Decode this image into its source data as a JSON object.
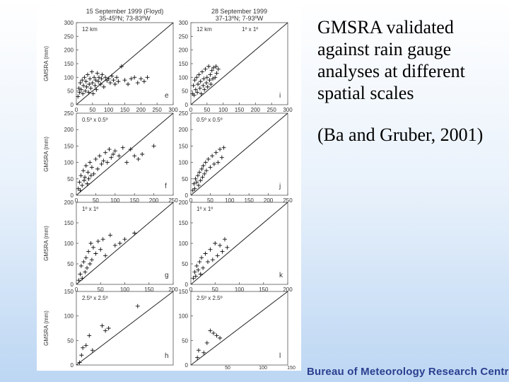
{
  "slide": {
    "title_lines": [
      "GMSRA validated against rain gauge analyses at different spatial scales"
    ],
    "citation": "(Ba and Gruber, 2001)",
    "footer_text": "Bureau of Meteorology Research Centre"
  },
  "chart_data": {
    "type": "scatter",
    "columns": [
      {
        "title": "15 September 1999 (Floyd)",
        "region": "35-45ºN; 73-83ºW"
      },
      {
        "title": "28 September 1999",
        "region": "37-13ºN; 7-93ºW"
      }
    ],
    "ylabel": "GMSRA (mm)",
    "footer_ticks": [
      "50",
      "100",
      "150"
    ],
    "rows": [
      {
        "ylim": [
          0,
          300
        ],
        "yticks": [
          "0",
          "50",
          "100",
          "150",
          "200",
          "250",
          "300"
        ],
        "xlim": [
          0,
          300
        ],
        "xticks": [
          "0",
          "50",
          "100",
          "150",
          "200",
          "250",
          "300"
        ],
        "panels": [
          {
            "id": "e",
            "label": "e",
            "scale": "12 km",
            "scale2": "",
            "points": [
              [
                5,
                30
              ],
              [
                8,
                60
              ],
              [
                10,
                45
              ],
              [
                12,
                80
              ],
              [
                15,
                55
              ],
              [
                18,
                90
              ],
              [
                20,
                40
              ],
              [
                22,
                70
              ],
              [
                25,
                100
              ],
              [
                28,
                50
              ],
              [
                30,
                85
              ],
              [
                32,
                65
              ],
              [
                35,
                110
              ],
              [
                38,
                45
              ],
              [
                40,
                75
              ],
              [
                42,
                95
              ],
              [
                45,
                60
              ],
              [
                48,
                120
              ],
              [
                50,
                80
              ],
              [
                52,
                40
              ],
              [
                55,
                100
              ],
              [
                58,
                70
              ],
              [
                60,
                90
              ],
              [
                62,
                55
              ],
              [
                65,
                115
              ],
              [
                68,
                85
              ],
              [
                70,
                100
              ],
              [
                75,
                75
              ],
              [
                78,
                95
              ],
              [
                80,
                110
              ],
              [
                85,
                65
              ],
              [
                90,
                100
              ],
              [
                95,
                88
              ],
              [
                100,
                95
              ],
              [
                105,
                80
              ],
              [
                110,
                105
              ],
              [
                115,
                90
              ],
              [
                120,
                75
              ],
              [
                125,
                100
              ],
              [
                130,
                85
              ],
              [
                140,
                140
              ],
              [
                150,
                90
              ],
              [
                160,
                75
              ],
              [
                170,
                95
              ],
              [
                180,
                100
              ],
              [
                190,
                80
              ],
              [
                200,
                95
              ],
              [
                210,
                85
              ],
              [
                220,
                100
              ]
            ]
          },
          {
            "id": "i",
            "label": "i",
            "scale": "12 km",
            "scale2": "1º x 1º",
            "points": [
              [
                5,
                40
              ],
              [
                8,
                70
              ],
              [
                10,
                35
              ],
              [
                12,
                90
              ],
              [
                15,
                55
              ],
              [
                18,
                100
              ],
              [
                20,
                45
              ],
              [
                22,
                75
              ],
              [
                25,
                110
              ],
              [
                28,
                60
              ],
              [
                30,
                85
              ],
              [
                32,
                40
              ],
              [
                35,
                120
              ],
              [
                38,
                70
              ],
              [
                40,
                95
              ],
              [
                42,
                55
              ],
              [
                45,
                130
              ],
              [
                48,
                80
              ],
              [
                50,
                100
              ],
              [
                52,
                65
              ],
              [
                55,
                140
              ],
              [
                58,
                90
              ],
              [
                60,
                110
              ],
              [
                62,
                75
              ],
              [
                65,
                125
              ],
              [
                68,
                95
              ],
              [
                70,
                135
              ],
              [
                75,
                100
              ],
              [
                78,
                140
              ],
              [
                80,
                115
              ],
              [
                85,
                130
              ]
            ]
          }
        ]
      },
      {
        "ylim": [
          0,
          250
        ],
        "yticks": [
          "0",
          "50",
          "100",
          "150",
          "200",
          "250"
        ],
        "xlim": [
          0,
          250
        ],
        "xticks": [
          "0",
          "50",
          "100",
          "150",
          "200",
          "250"
        ],
        "panels": [
          {
            "id": "f",
            "label": "f",
            "scale": "0.5º x 0.5º",
            "scale2": "",
            "points": [
              [
                5,
                20
              ],
              [
                8,
                40
              ],
              [
                10,
                15
              ],
              [
                12,
                60
              ],
              [
                15,
                30
              ],
              [
                18,
                75
              ],
              [
                20,
                45
              ],
              [
                22,
                55
              ],
              [
                25,
                90
              ],
              [
                28,
                35
              ],
              [
                30,
                70
              ],
              [
                32,
                50
              ],
              [
                35,
                100
              ],
              [
                38,
                60
              ],
              [
                40,
                85
              ],
              [
                45,
                65
              ],
              [
                50,
                110
              ],
              [
                55,
                80
              ],
              [
                60,
                120
              ],
              [
                65,
                95
              ],
              [
                70,
                105
              ],
              [
                75,
                130
              ],
              [
                80,
                100
              ],
              [
                85,
                140
              ],
              [
                90,
                115
              ],
              [
                95,
                125
              ],
              [
                100,
                135
              ],
              [
                110,
                120
              ],
              [
                120,
                145
              ],
              [
                130,
                100
              ],
              [
                140,
                140
              ],
              [
                150,
                120
              ],
              [
                160,
                110
              ],
              [
                170,
                125
              ],
              [
                200,
                150
              ]
            ]
          },
          {
            "id": "j",
            "label": "j",
            "scale": "0.5º x 0.5º",
            "scale2": "",
            "points": [
              [
                5,
                15
              ],
              [
                8,
                35
              ],
              [
                10,
                20
              ],
              [
                12,
                50
              ],
              [
                15,
                40
              ],
              [
                18,
                60
              ],
              [
                20,
                30
              ],
              [
                22,
                70
              ],
              [
                25,
                45
              ],
              [
                28,
                80
              ],
              [
                30,
                55
              ],
              [
                32,
                90
              ],
              [
                35,
                65
              ],
              [
                38,
                100
              ],
              [
                40,
                75
              ],
              [
                45,
                110
              ],
              [
                50,
                85
              ],
              [
                55,
                120
              ],
              [
                60,
                95
              ],
              [
                65,
                130
              ],
              [
                70,
                100
              ],
              [
                75,
                140
              ],
              [
                80,
                115
              ],
              [
                85,
                145
              ]
            ]
          }
        ]
      },
      {
        "ylim": [
          0,
          200
        ],
        "yticks": [
          "0",
          "50",
          "100",
          "150",
          "200"
        ],
        "xlim": [
          0,
          200
        ],
        "xticks": [
          "0",
          "50",
          "100",
          "150",
          "200"
        ],
        "panels": [
          {
            "id": "g",
            "label": "g",
            "scale": "1º x 1º",
            "scale2": "",
            "points": [
              [
                5,
                10
              ],
              [
                8,
                25
              ],
              [
                10,
                45
              ],
              [
                12,
                15
              ],
              [
                15,
                55
              ],
              [
                18,
                30
              ],
              [
                20,
                65
              ],
              [
                22,
                40
              ],
              [
                25,
                80
              ],
              [
                28,
                50
              ],
              [
                30,
                100
              ],
              [
                32,
                60
              ],
              [
                35,
                90
              ],
              [
                40,
                75
              ],
              [
                45,
                105
              ],
              [
                50,
                85
              ],
              [
                55,
                110
              ],
              [
                60,
                70
              ],
              [
                70,
                120
              ],
              [
                80,
                95
              ],
              [
                90,
                100
              ],
              [
                100,
                110
              ],
              [
                120,
                125
              ]
            ]
          },
          {
            "id": "k",
            "label": "k",
            "scale": "1º x 1º",
            "scale2": "",
            "points": [
              [
                5,
                15
              ],
              [
                8,
                30
              ],
              [
                10,
                20
              ],
              [
                12,
                45
              ],
              [
                15,
                35
              ],
              [
                18,
                55
              ],
              [
                20,
                25
              ],
              [
                22,
                65
              ],
              [
                25,
                40
              ],
              [
                30,
                75
              ],
              [
                35,
                55
              ],
              [
                40,
                85
              ],
              [
                45,
                60
              ],
              [
                50,
                100
              ],
              [
                55,
                70
              ],
              [
                60,
                95
              ],
              [
                65,
                80
              ],
              [
                70,
                110
              ],
              [
                75,
                90
              ]
            ]
          }
        ]
      },
      {
        "ylim": [
          0,
          150
        ],
        "yticks": [
          "0",
          "50",
          "100",
          "150"
        ],
        "xlim": [
          0,
          150
        ],
        "xticks": [],
        "panels": [
          {
            "id": "h",
            "label": "h",
            "scale": "2.5º x 2.5º",
            "scale2": "",
            "points": [
              [
                5,
                5
              ],
              [
                8,
                20
              ],
              [
                10,
                35
              ],
              [
                15,
                40
              ],
              [
                20,
                60
              ],
              [
                25,
                30
              ],
              [
                40,
                80
              ],
              [
                45,
                70
              ],
              [
                50,
                75
              ],
              [
                95,
                120
              ]
            ]
          },
          {
            "id": "l",
            "label": "l",
            "scale": "2.5º x 2.5º",
            "scale2": "",
            "points": [
              [
                10,
                15
              ],
              [
                12,
                30
              ],
              [
                20,
                25
              ],
              [
                25,
                45
              ],
              [
                30,
                70
              ],
              [
                35,
                65
              ],
              [
                40,
                60
              ],
              [
                45,
                55
              ]
            ]
          }
        ]
      }
    ]
  }
}
